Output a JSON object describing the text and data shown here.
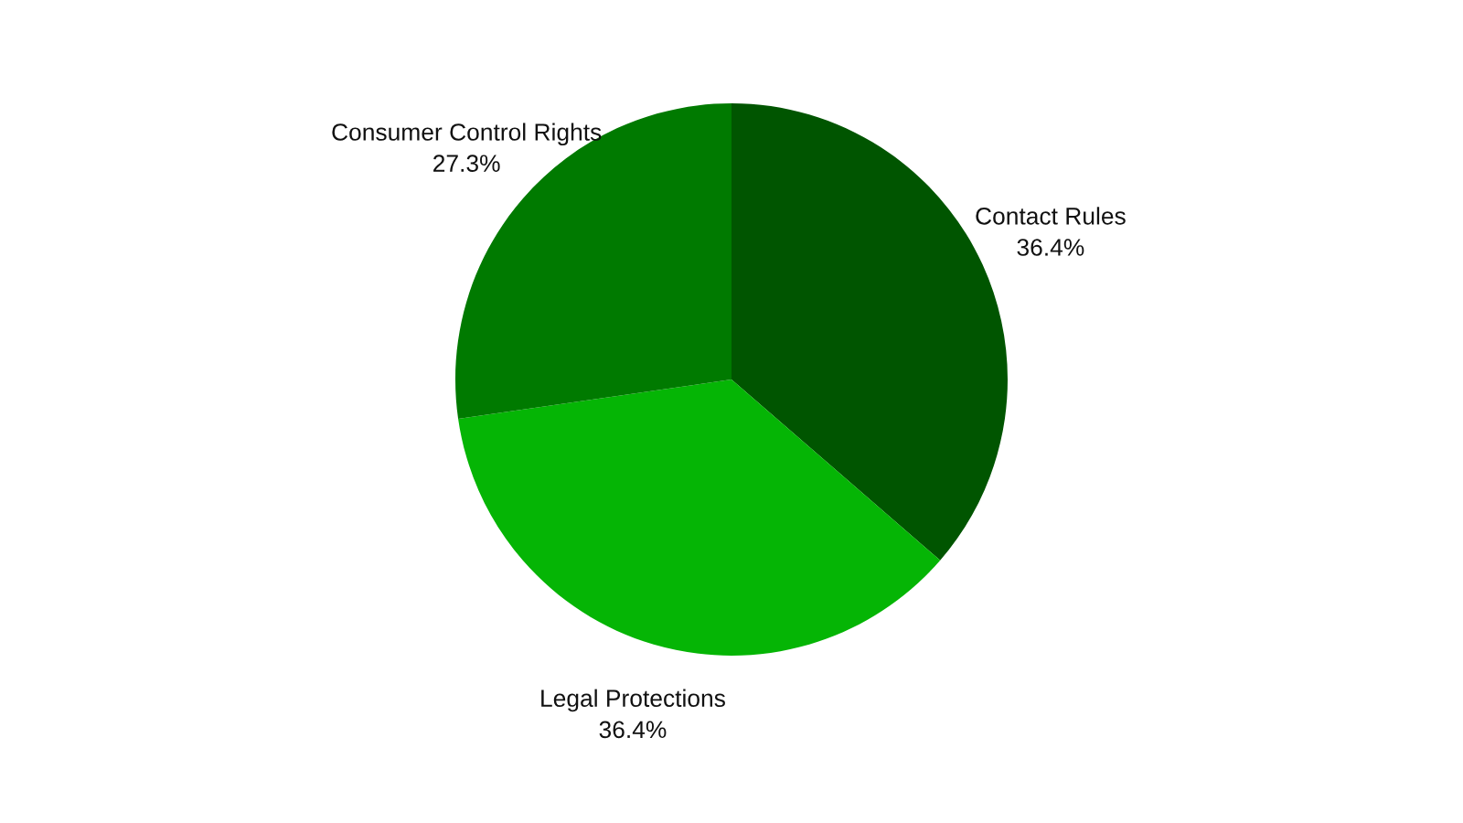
{
  "chart_data": {
    "type": "pie",
    "categories": [
      "Contact Rules",
      "Legal Protections",
      "Consumer Control Rights"
    ],
    "values": [
      36.4,
      36.4,
      27.3
    ],
    "value_labels": [
      "36.4%",
      "36.4%",
      "27.3%"
    ],
    "colors": [
      "#005500",
      "#05b505",
      "#007a00"
    ],
    "legend": false
  }
}
